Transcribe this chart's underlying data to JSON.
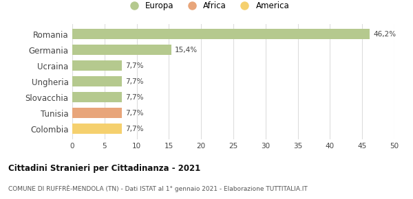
{
  "categories": [
    "Romania",
    "Germania",
    "Ucraina",
    "Ungheria",
    "Slovacchia",
    "Tunisia",
    "Colombia"
  ],
  "values": [
    46.2,
    15.4,
    7.7,
    7.7,
    7.7,
    7.7,
    7.7
  ],
  "labels": [
    "46,2%",
    "15,4%",
    "7,7%",
    "7,7%",
    "7,7%",
    "7,7%",
    "7,7%"
  ],
  "colors": [
    "#b5c98e",
    "#b5c98e",
    "#b5c98e",
    "#b5c98e",
    "#b5c98e",
    "#e8a57a",
    "#f5d06e"
  ],
  "legend": [
    {
      "label": "Europa",
      "color": "#b5c98e"
    },
    {
      "label": "Africa",
      "color": "#e8a57a"
    },
    {
      "label": "America",
      "color": "#f5d06e"
    }
  ],
  "xlim": [
    0,
    50
  ],
  "xticks": [
    0,
    5,
    10,
    15,
    20,
    25,
    30,
    35,
    40,
    45,
    50
  ],
  "title": "Cittadini Stranieri per Cittadinanza - 2021",
  "subtitle": "COMUNE DI RUFFRÈ-MENDOLA (TN) - Dati ISTAT al 1° gennaio 2021 - Elaborazione TUTTITALIA.IT",
  "background_color": "#ffffff",
  "grid_color": "#dddddd",
  "bar_height": 0.65
}
